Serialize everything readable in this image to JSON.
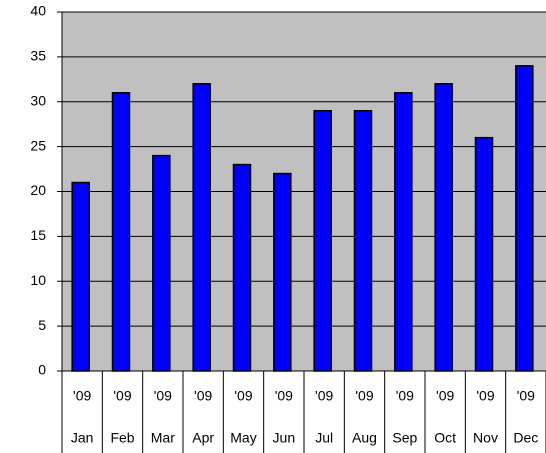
{
  "chart_data": {
    "type": "bar",
    "categories": [
      "Jan",
      "Feb",
      "Mar",
      "Apr",
      "May",
      "Jun",
      "Jul",
      "Aug",
      "Sep",
      "Oct",
      "Nov",
      "Dec"
    ],
    "category_groups": [
      "'09",
      "'09",
      "'09",
      "'09",
      "'09",
      "'09",
      "'09",
      "'09",
      "'09",
      "'09",
      "'09",
      "'09"
    ],
    "values": [
      21,
      31,
      24,
      32,
      23,
      22,
      29,
      29,
      31,
      32,
      26,
      34
    ],
    "color": "#0000ff",
    "ylim": [
      0,
      40
    ],
    "yticks": [
      0,
      5,
      10,
      15,
      20,
      25,
      30,
      35,
      40
    ],
    "grid": true
  }
}
